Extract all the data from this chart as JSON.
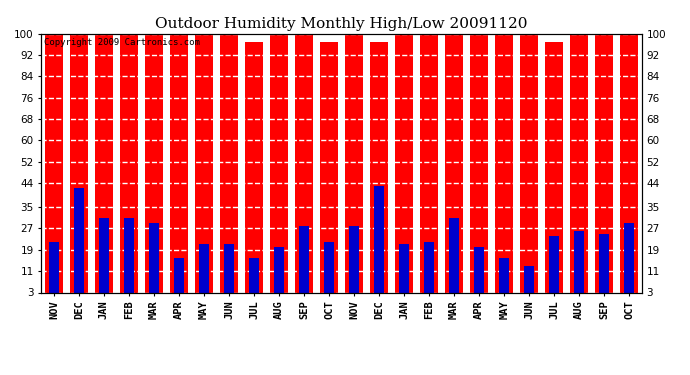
{
  "title": "Outdoor Humidity Monthly High/Low 20091120",
  "copyright_text": "Copyright 2009 Cartronics.com",
  "categories": [
    "NOV",
    "DEC",
    "JAN",
    "FEB",
    "MAR",
    "APR",
    "MAY",
    "JUN",
    "JUL",
    "AUG",
    "SEP",
    "OCT",
    "NOV",
    "DEC",
    "JAN",
    "FEB",
    "MAR",
    "APR",
    "MAY",
    "JUN",
    "JUL",
    "AUG",
    "SEP",
    "OCT"
  ],
  "highs": [
    100,
    100,
    100,
    100,
    100,
    100,
    100,
    100,
    97,
    100,
    100,
    97,
    100,
    97,
    100,
    100,
    100,
    100,
    100,
    100,
    97,
    100,
    100,
    100
  ],
  "lows": [
    22,
    42,
    31,
    31,
    29,
    16,
    21,
    21,
    16,
    20,
    28,
    22,
    28,
    43,
    21,
    22,
    31,
    20,
    16,
    13,
    24,
    26,
    25,
    29
  ],
  "high_color": "#ff0000",
  "low_color": "#0000cc",
  "bg_color": "#ffffff",
  "plot_bg_color": "#ffffff",
  "grid_color": "#888888",
  "ylim_min": 3,
  "ylim_max": 100,
  "yticks": [
    3,
    11,
    19,
    27,
    35,
    44,
    52,
    60,
    68,
    76,
    84,
    92,
    100
  ],
  "title_fontsize": 11,
  "tick_fontsize": 7.5,
  "copyright_fontsize": 6.5,
  "high_bar_width": 0.72,
  "low_bar_width": 0.38
}
